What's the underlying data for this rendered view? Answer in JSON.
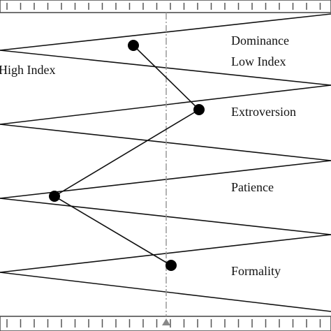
{
  "labels": {
    "dominance": "Dominance",
    "low_index": "Low Index",
    "high_index": "High Index",
    "extroversion": "Extroversion",
    "patience": "Patience",
    "formality": "Formality"
  }
}
